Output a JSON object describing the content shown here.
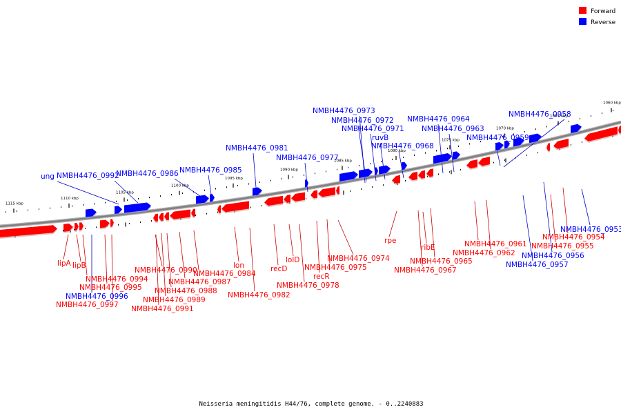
{
  "caption": "Neisseria meningitidis H44/76, complete genome. - 0..2240883",
  "legend": [
    {
      "label": "Forward",
      "color": "#ff0000"
    },
    {
      "label": "Reverse",
      "color": "#0000ff"
    }
  ],
  "colors": {
    "forward": "#ff0000",
    "reverse": "#0000ff",
    "forward_line": "#cc0000",
    "reverse_line": "#0000cc",
    "backbone": "#808080"
  },
  "ticks": [
    "1115 kbp",
    "1110 kbp",
    "1105 kbp",
    "1100 kbp",
    "1095 kbp",
    "1090 kbp",
    "1085 kbp",
    "1080 kbp",
    "1075 kbp",
    "1070 kbp",
    "1065 kbp",
    "1060 kbp"
  ],
  "reverse_genes": [
    {
      "name": "ung"
    },
    {
      "name": "NMBH4476_0992"
    },
    {
      "name": "NMBH4476_0986"
    },
    {
      "name": "NMBH4476_0985"
    },
    {
      "name": "NMBH4476_0981"
    },
    {
      "name": "NMBH4476_0977"
    },
    {
      "name": "NMBH4476_0973"
    },
    {
      "name": "NMBH4476_0972"
    },
    {
      "name": "NMBH4476_0971"
    },
    {
      "name": "ruvB"
    },
    {
      "name": "NMBH4476_0968"
    },
    {
      "name": "NMBH4476_0964"
    },
    {
      "name": "NMBH4476_0963"
    },
    {
      "name": "NMBH4476_0959"
    },
    {
      "name": "NMBH4476_0958"
    },
    {
      "name": "NMBH4476_0953"
    },
    {
      "name": "NMBH4476_0956"
    },
    {
      "name": "NMBH4476_0957"
    },
    {
      "name": "NMBH4476_0996"
    }
  ],
  "forward_genes": [
    {
      "name": "lipA"
    },
    {
      "name": "lipB"
    },
    {
      "name": "NMBH4476_0994"
    },
    {
      "name": "NMBH4476_0995"
    },
    {
      "name": "NMBH4476_0997"
    },
    {
      "name": "NMBH4476_0990"
    },
    {
      "name": "NMBH4476_0987"
    },
    {
      "name": "NMBH4476_0988"
    },
    {
      "name": "NMBH4476_0989"
    },
    {
      "name": "NMBH4476_0991"
    },
    {
      "name": "NMBH4476_0984"
    },
    {
      "name": "lon"
    },
    {
      "name": "NMBH4476_0982"
    },
    {
      "name": "recD"
    },
    {
      "name": "lolD"
    },
    {
      "name": "NMBH4476_0978"
    },
    {
      "name": "recR"
    },
    {
      "name": "NMBH4476_0975"
    },
    {
      "name": "NMBH4476_0974"
    },
    {
      "name": "rpe"
    },
    {
      "name": "ribE"
    },
    {
      "name": "NMBH4476_0965"
    },
    {
      "name": "NMBH4476_0967"
    },
    {
      "name": "NMBH4476_0961"
    },
    {
      "name": "NMBH4476_0962"
    },
    {
      "name": "NMBH4476_0955"
    },
    {
      "name": "NMBH4476_0954"
    }
  ]
}
